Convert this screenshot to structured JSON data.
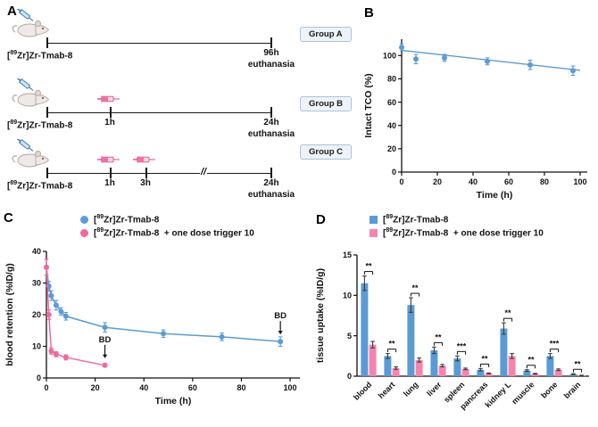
{
  "panels": {
    "a": {
      "letter": "A",
      "tracer": {
        "pre": "[",
        "sup": "89",
        "post": "Zr]Zr-Tmab-8"
      },
      "groups": [
        {
          "name": "Group A",
          "ticks": [],
          "end_time": "96h",
          "end_sub": "euthanasia"
        },
        {
          "name": "Group B",
          "ticks": [
            "1h"
          ],
          "end_time": "24h",
          "end_sub": "euthanasia"
        },
        {
          "name": "Group C",
          "ticks": [
            "1h",
            "3h"
          ],
          "end_time": "24h",
          "end_sub": "euthanasia"
        }
      ]
    },
    "b": {
      "letter": "B"
    },
    "c": {
      "letter": "C",
      "legend": [
        {
          "pre": "[",
          "sup": "89",
          "post": "Zr]Zr-Tmab-8",
          "suffix": ""
        },
        {
          "pre": "[",
          "sup": "89",
          "post": "Zr]Zr-Tmab-8",
          "suffix": "  + one dose trigger 10"
        }
      ]
    },
    "d": {
      "letter": "D",
      "legend": [
        {
          "pre": "[",
          "sup": "89",
          "post": "Zr]Zr-Tmab-8",
          "suffix": ""
        },
        {
          "pre": "[",
          "sup": "89",
          "post": "Zr]Zr-Tmab-8",
          "suffix": "  + one dose trigger 10"
        }
      ]
    }
  },
  "colors": {
    "blue": "#5B9BD5",
    "pink": "#F2679E",
    "pink_bar": "#F685AE",
    "axis": "#111111"
  },
  "chart_data": [
    {
      "id": "chart-b",
      "type": "scatter",
      "xlabel": "Time (h)",
      "ylabel": "Intact TCO (%)",
      "x": [
        0,
        8,
        24,
        48,
        72,
        96
      ],
      "y": [
        107,
        97,
        98,
        95,
        92,
        87
      ],
      "yerr": [
        3,
        4,
        3,
        3,
        4,
        4
      ],
      "color_key": "blue",
      "fit_line": {
        "x0": 0,
        "y0": 104.5,
        "x1": 100,
        "y1": 87.3
      },
      "xlim": [
        0,
        104
      ],
      "ylim": [
        0,
        114
      ],
      "xticks": [
        0,
        20,
        40,
        60,
        80,
        100
      ],
      "yticks": [
        0,
        20,
        40,
        60,
        80,
        100
      ],
      "grid": false,
      "legend_position": "none"
    },
    {
      "id": "chart-c",
      "type": "line",
      "xlabel": "Time (h)",
      "ylabel": "blood retention (%ID/g)",
      "xlim": [
        0,
        104
      ],
      "ylim": [
        0,
        40
      ],
      "xticks": [
        0,
        20,
        40,
        60,
        80,
        100
      ],
      "yticks": [
        0,
        10,
        20,
        30,
        40
      ],
      "grid": false,
      "legend_position": "top",
      "series": [
        {
          "name": "[89Zr]Zr-Tmab-8",
          "color_key": "blue",
          "x": [
            0,
            1,
            2,
            4,
            6,
            8,
            24,
            48,
            72,
            96
          ],
          "y": [
            35,
            29,
            26,
            23,
            21,
            19.5,
            16,
            14,
            13,
            11.5
          ],
          "yerr": [
            2.5,
            1.5,
            1.5,
            1.5,
            1.2,
            1.2,
            1.5,
            1.2,
            1.2,
            1.5
          ]
        },
        {
          "name": "[89Zr]Zr-Tmab-8 + one dose trigger 10",
          "color_key": "pink",
          "x": [
            0,
            1,
            2,
            4,
            8,
            24
          ],
          "y": [
            35,
            20,
            8.5,
            7.5,
            6.5,
            4
          ],
          "yerr": [
            2.5,
            1.5,
            1,
            0.8,
            0.8,
            0.5
          ]
        }
      ],
      "annotations": [
        {
          "text": "BD",
          "x": 96,
          "y": 11.5
        },
        {
          "text": "BD",
          "x": 24,
          "y": 4
        }
      ]
    },
    {
      "id": "chart-d",
      "type": "bar",
      "ylabel": "tissue uptake (%ID/g)",
      "categories": [
        "blood",
        "heart",
        "lung",
        "liver",
        "spleen",
        "pancreas",
        "kidney L",
        "muscle",
        "bone",
        "brain"
      ],
      "series": [
        {
          "name": "[89Zr]Zr-Tmab-8",
          "color_key": "blue",
          "values": [
            11.5,
            2.5,
            8.8,
            3.2,
            2.2,
            0.8,
            5.9,
            0.7,
            2.5,
            0.25
          ],
          "errors": [
            0.9,
            0.3,
            0.9,
            0.4,
            0.3,
            0.15,
            0.7,
            0.1,
            0.3,
            0.05
          ]
        },
        {
          "name": "[89Zr]Zr-Tmab-8 + one dose trigger 10",
          "color_key": "pink_bar",
          "values": [
            3.9,
            1.0,
            2.0,
            1.3,
            0.9,
            0.35,
            2.5,
            0.3,
            0.8,
            0.1
          ],
          "errors": [
            0.4,
            0.15,
            0.25,
            0.15,
            0.1,
            0.05,
            0.3,
            0.05,
            0.1,
            0.03
          ]
        }
      ],
      "significance": [
        "**",
        "**",
        "**",
        "**",
        "***",
        "**",
        "**",
        "**",
        "***",
        "**"
      ],
      "ylim": [
        0,
        15
      ],
      "yticks": [
        0,
        5,
        10,
        15
      ],
      "grid": false,
      "legend_position": "top"
    }
  ]
}
